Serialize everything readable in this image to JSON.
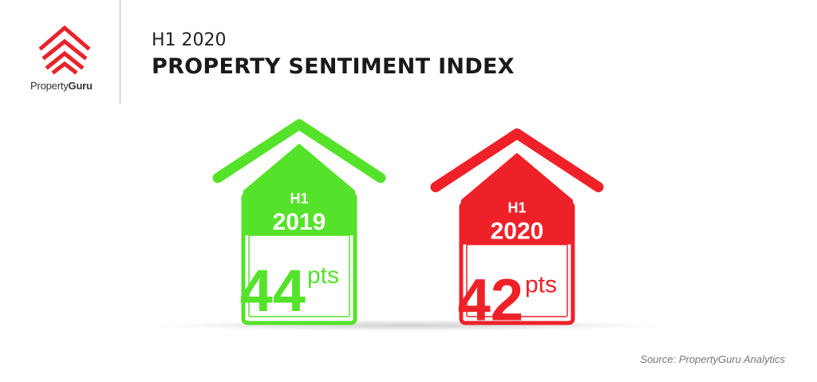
{
  "header": {
    "subtitle": "H1 2020",
    "title": "PROPERTY SENTIMENT INDEX"
  },
  "logo": {
    "text_part1": "Property",
    "text_part2": "Guru",
    "color": "#e8232a"
  },
  "source": "Source: PropertyGuru Analytics",
  "chart_data": {
    "type": "bar",
    "categories": [
      "H1 2019",
      "H1 2020"
    ],
    "values": [
      44,
      42
    ],
    "unit": "pts",
    "title": "PROPERTY SENTIMENT INDEX",
    "colors": [
      "#55e22a",
      "#ee2129"
    ],
    "labels": [
      {
        "period": "H1",
        "year": "2019"
      },
      {
        "period": "H1",
        "year": "2020"
      }
    ]
  }
}
